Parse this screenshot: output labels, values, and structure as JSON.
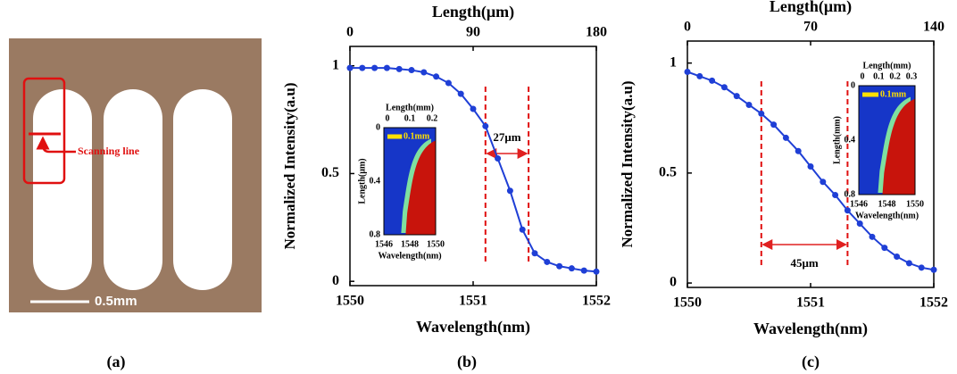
{
  "image": {
    "annotation": "Scanning line",
    "scale_bar": "0.5mm"
  },
  "panel_labels": [
    "(a)",
    "(b)",
    "(c)"
  ],
  "chart_data": [
    {
      "type": "line",
      "xlabel": "Wavelength(nm)",
      "ylabel": "Normalized Intensity(a.u)",
      "x2label": "Length(μm)",
      "x": [
        1550.0,
        1550.1,
        1550.2,
        1550.3,
        1550.4,
        1550.5,
        1550.6,
        1550.7,
        1550.8,
        1550.9,
        1551.0,
        1551.1,
        1551.2,
        1551.3,
        1551.4,
        1551.5,
        1551.6,
        1551.7,
        1551.8,
        1551.9,
        1552.0
      ],
      "values": [
        0.99,
        0.99,
        0.99,
        0.99,
        0.985,
        0.98,
        0.97,
        0.95,
        0.92,
        0.87,
        0.8,
        0.72,
        0.57,
        0.42,
        0.24,
        0.13,
        0.09,
        0.07,
        0.06,
        0.05,
        0.045
      ],
      "color": "#1f3fd6",
      "xlim": [
        1550,
        1552
      ],
      "xticks": [
        1550,
        1551,
        1552
      ],
      "ylim": [
        -0.02,
        1.09
      ],
      "yticks": [
        0,
        0.5,
        1
      ],
      "x2lim": [
        0,
        180
      ],
      "x2ticks": [
        0,
        90,
        180
      ],
      "span": {
        "x": [
          1551.1,
          1551.45
        ],
        "label": "27μm"
      },
      "inset": {
        "title": "Length(mm)",
        "xticks": [
          0,
          0.1,
          0.2
        ],
        "ylabel": "Length(μm)",
        "yticks": [
          0,
          0.4,
          0.8
        ],
        "bottom_ticks": [
          1546,
          1548,
          1550
        ],
        "xlabel": "Wavelength(nm)",
        "marker": "0.1mm"
      }
    },
    {
      "type": "line",
      "xlabel": "Wavelength(nm)",
      "ylabel": "Normalized Intensity(a.u)",
      "x2label": "Length(μm)",
      "x": [
        1550.0,
        1550.1,
        1550.2,
        1550.3,
        1550.4,
        1550.5,
        1550.6,
        1550.7,
        1550.8,
        1550.9,
        1551.0,
        1551.1,
        1551.2,
        1551.3,
        1551.4,
        1551.5,
        1551.6,
        1551.7,
        1551.8,
        1551.9,
        1552.0
      ],
      "values": [
        0.96,
        0.94,
        0.92,
        0.89,
        0.85,
        0.81,
        0.77,
        0.72,
        0.66,
        0.6,
        0.53,
        0.46,
        0.4,
        0.33,
        0.27,
        0.21,
        0.16,
        0.12,
        0.09,
        0.07,
        0.06
      ],
      "color": "#1f3fd6",
      "xlim": [
        1550,
        1552
      ],
      "xticks": [
        1550,
        1551,
        1552
      ],
      "ylim": [
        -0.02,
        1.1
      ],
      "yticks": [
        0,
        0.5,
        1
      ],
      "x2lim": [
        0,
        140
      ],
      "x2ticks": [
        0,
        70,
        140
      ],
      "span": {
        "x": [
          1550.6,
          1551.3
        ],
        "label": "45μm"
      },
      "inset": {
        "title": "Length(mm)",
        "xticks": [
          0,
          0.1,
          0.2,
          0.3
        ],
        "ylabel": "Length(mm)",
        "yticks": [
          0,
          0.4,
          0.8
        ],
        "bottom_ticks": [
          1546,
          1548,
          1550
        ],
        "xlabel": "Wavelength(nm)",
        "marker": "0.1mm"
      }
    }
  ]
}
